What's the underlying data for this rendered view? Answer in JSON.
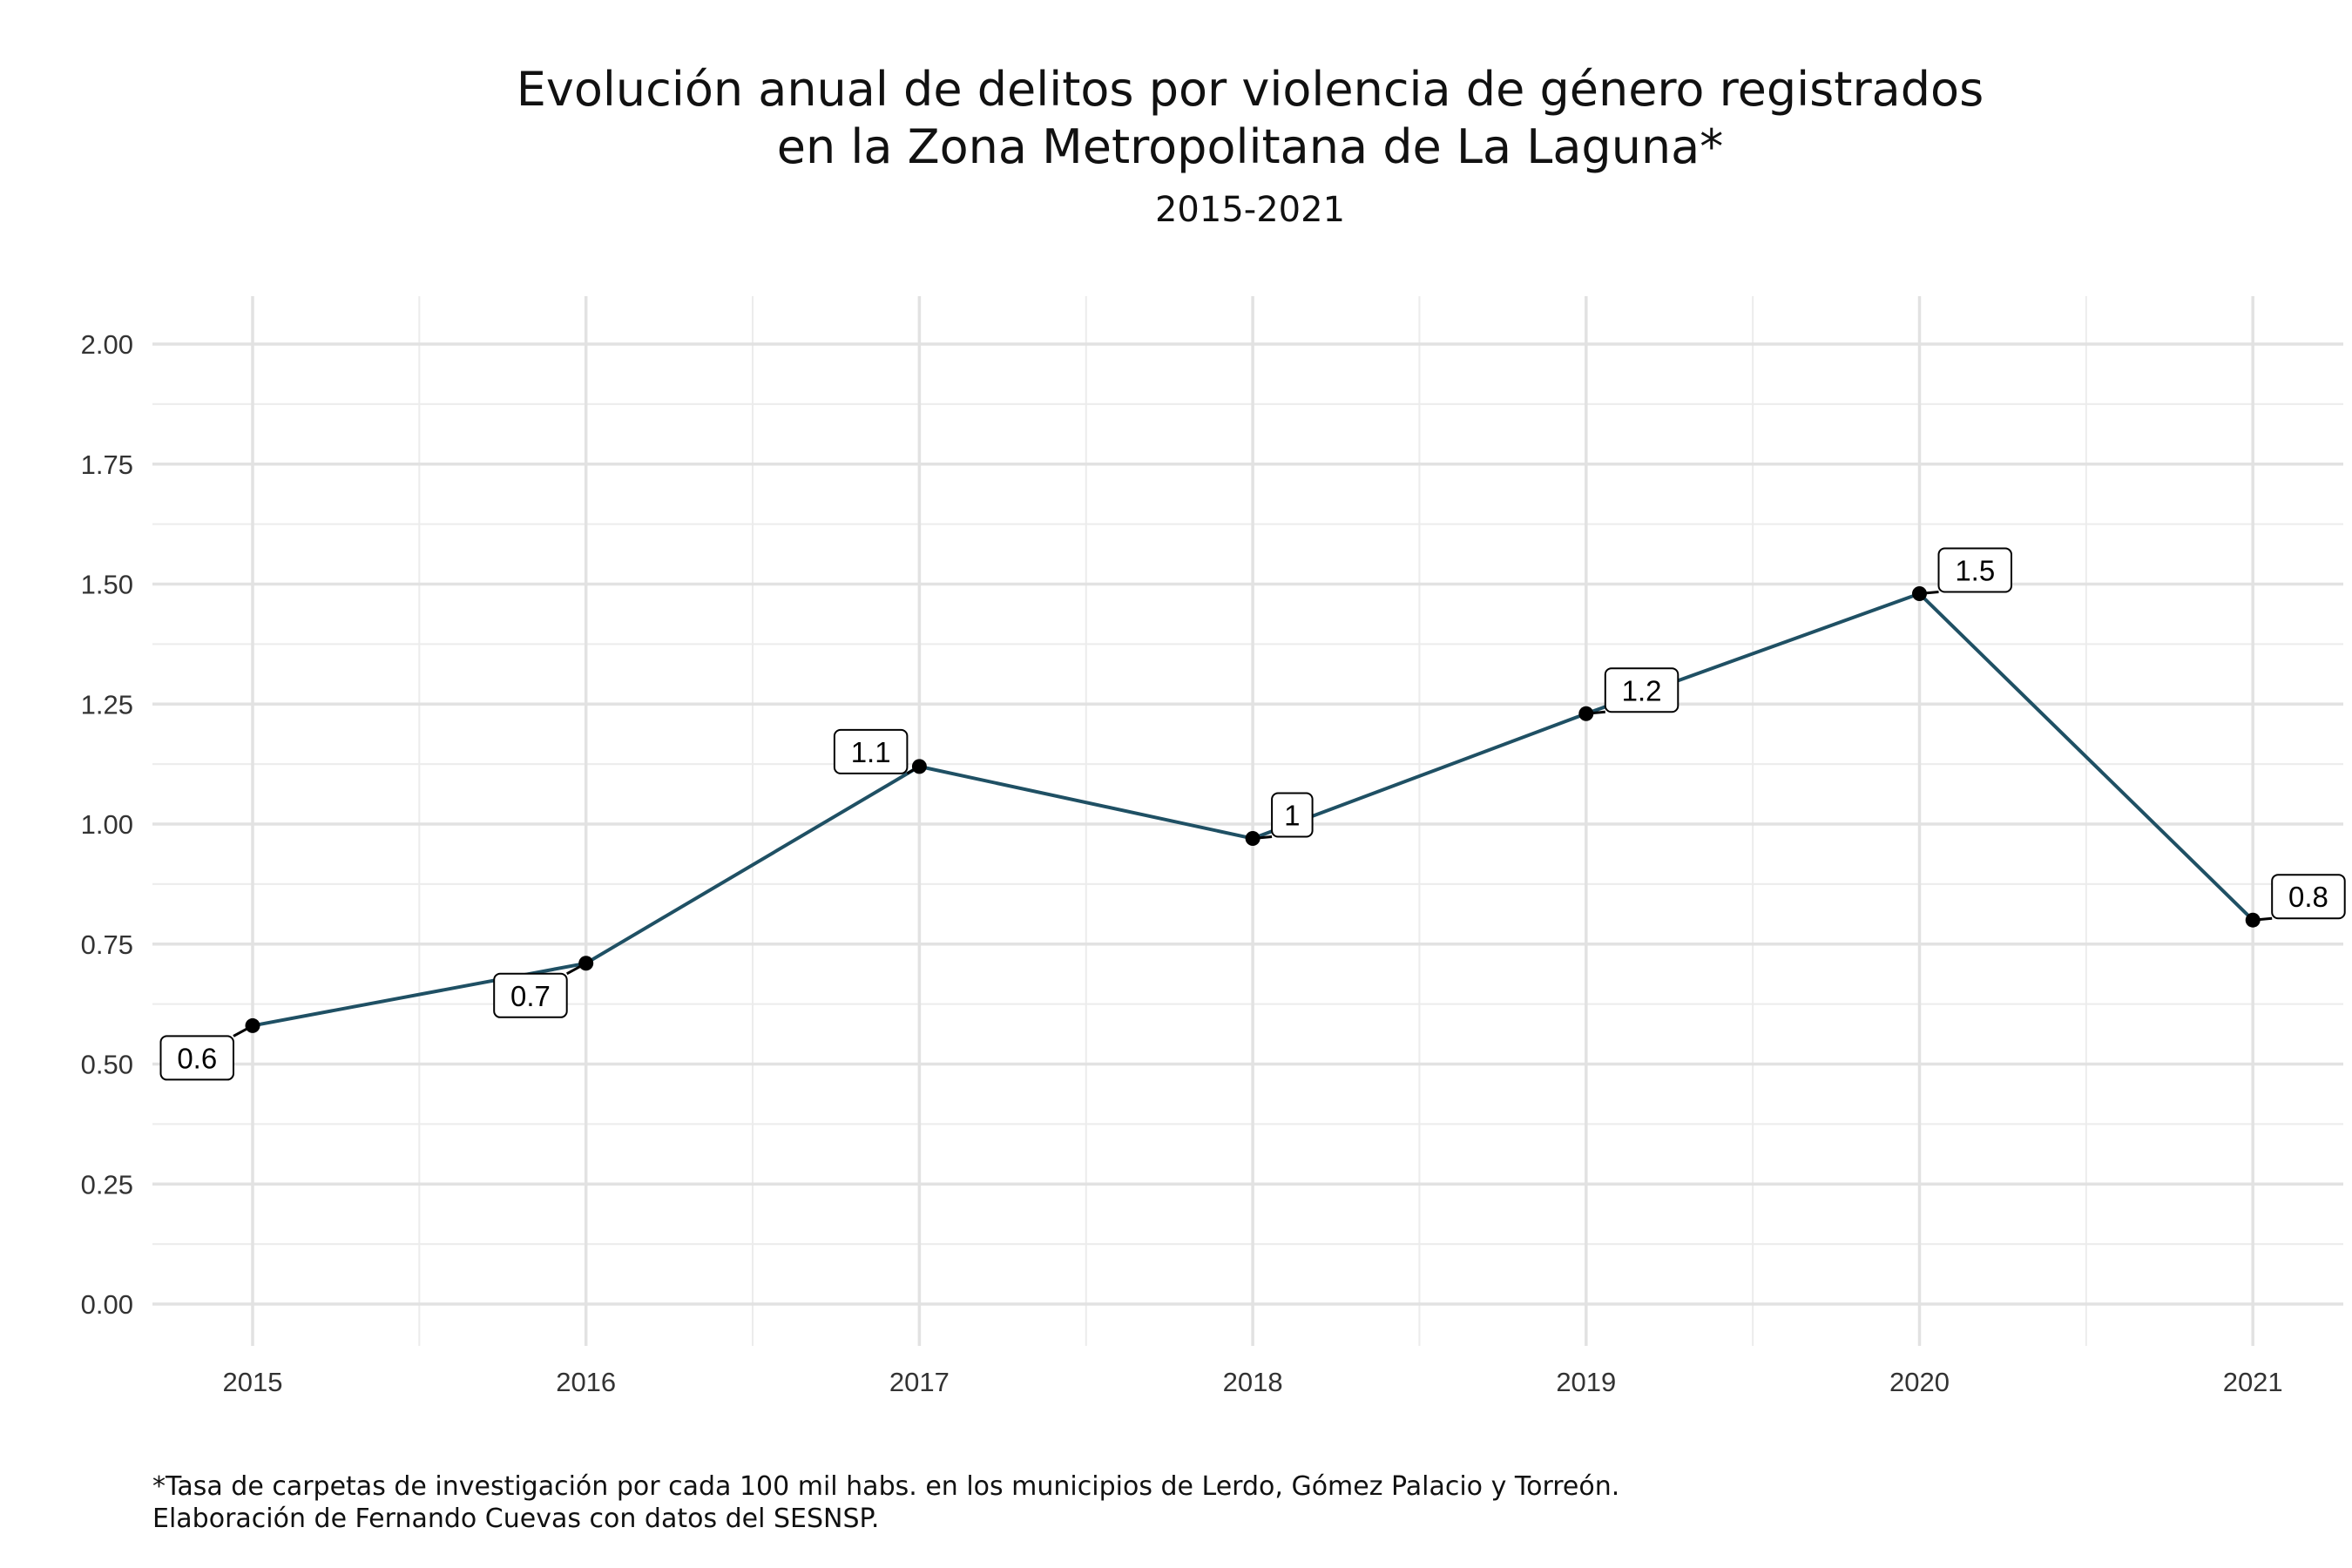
{
  "chart_data": {
    "type": "line",
    "title": [
      "Evolución anual de delitos por violencia de género registrados",
      "en la Zona Metropolitana de La Laguna*"
    ],
    "subtitle": "2015-2021",
    "x": [
      2015,
      2016,
      2017,
      2018,
      2019,
      2020,
      2021
    ],
    "x_tick_labels": [
      "2015",
      "2016",
      "2017",
      "2018",
      "2019",
      "2020",
      "2021"
    ],
    "values": [
      0.58,
      0.71,
      1.12,
      0.97,
      1.23,
      1.48,
      0.8
    ],
    "data_labels": [
      "0.6",
      "0.7",
      "1.1",
      "1",
      "1.2",
      "1.5",
      "0.8"
    ],
    "label_side": [
      "below-left",
      "below-left",
      "above-left",
      "above-right",
      "above-right",
      "above-right",
      "above-right"
    ],
    "ylim": [
      0,
      2
    ],
    "y_ticks": [
      0,
      0.25,
      0.5,
      0.75,
      1.0,
      1.25,
      1.5,
      1.75,
      2.0
    ],
    "y_tick_labels": [
      "0.00",
      "0.25",
      "0.50",
      "0.75",
      "1.00",
      "1.25",
      "1.50",
      "1.75",
      "2.00"
    ],
    "xlabel": "",
    "ylabel": "",
    "grid": true,
    "line_color": "#1f5064",
    "point_color": "#000000",
    "caption": [
      "*Tasa de carpetas de investigación por cada 100 mil habs. en los municipios de Lerdo, Gómez Palacio y Torreón.",
      "Elaboración de Fernando Cuevas con datos del SESNSP."
    ]
  }
}
